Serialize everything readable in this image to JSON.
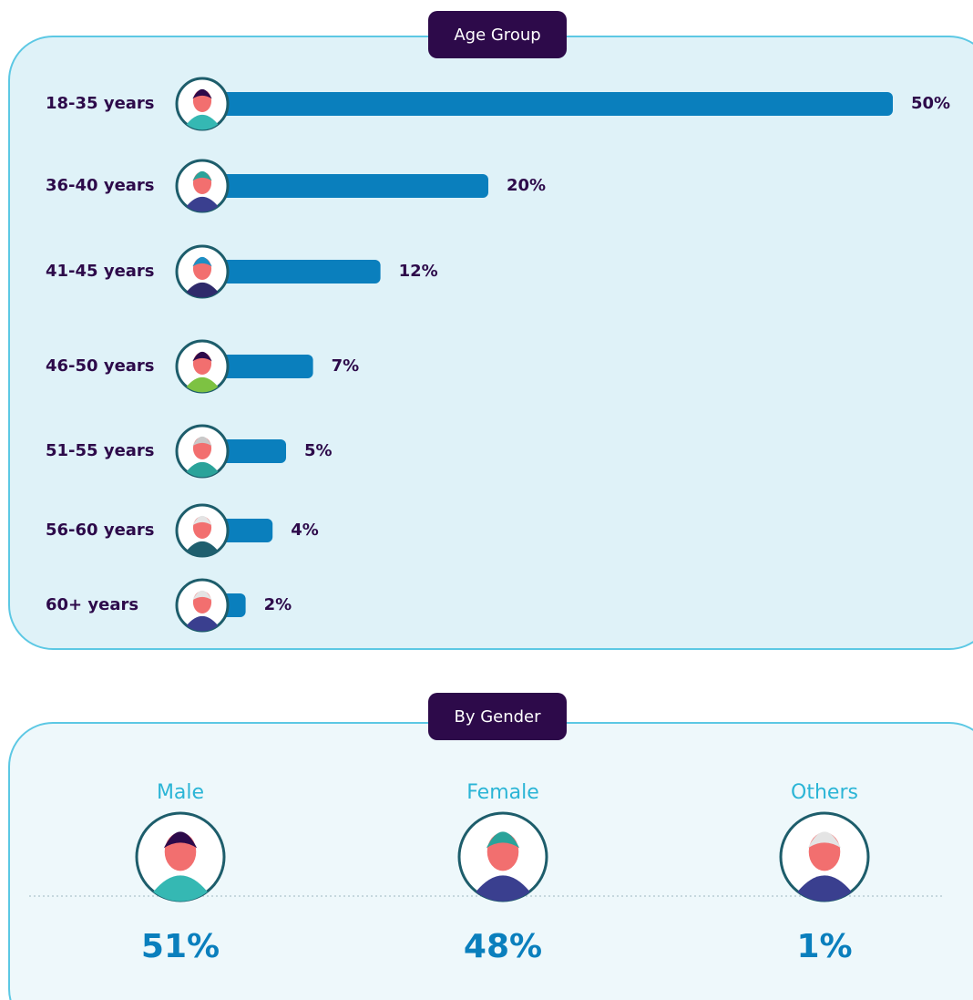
{
  "chart_data": [
    {
      "type": "bar",
      "title": "Age Group",
      "categories": [
        "18-35 years",
        "36-40 years",
        "41-45 years",
        "46-50 years",
        "51-55 years",
        "56-60 years",
        "60+ years"
      ],
      "values": [
        50,
        20,
        12,
        7,
        5,
        4,
        2
      ],
      "value_labels": [
        "50%",
        "20%",
        "12%",
        "7%",
        "5%",
        "4%",
        "2%"
      ],
      "color": "#0a7fbd"
    },
    {
      "type": "stat",
      "title": "By Gender",
      "categories": [
        "Male",
        "Female",
        "Others"
      ],
      "values": [
        51,
        48,
        1
      ],
      "value_labels": [
        "51%",
        "48%",
        "1%"
      ],
      "color": "#0a7fbd"
    }
  ]
}
